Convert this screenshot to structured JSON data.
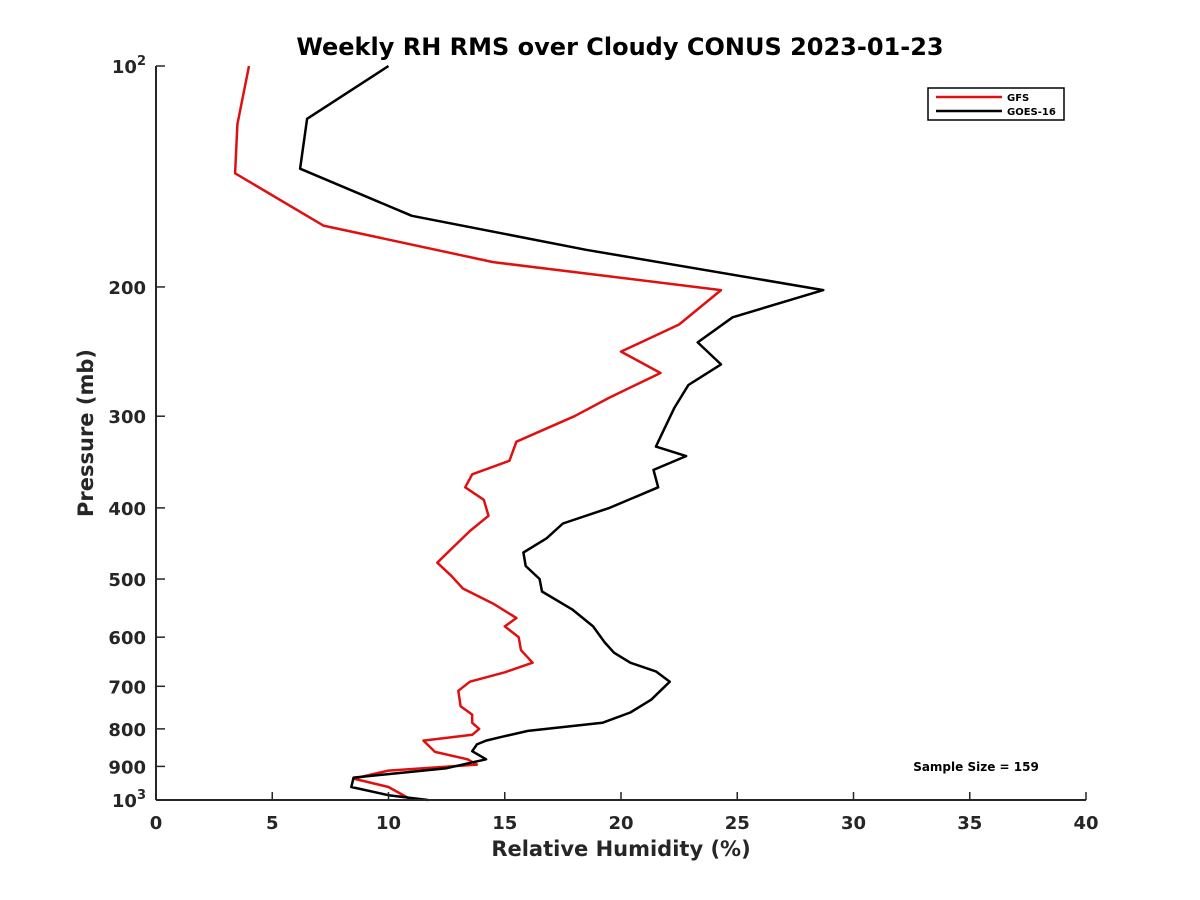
{
  "chart_data": {
    "type": "line",
    "title": "Weekly RH RMS over Cloudy CONUS 2023-01-23",
    "xlabel": "Relative Humidity (%)",
    "ylabel": "Pressure (mb)",
    "xlim": [
      0,
      40
    ],
    "ylim": [
      100,
      1000
    ],
    "y_scale": "log",
    "y_reversed": true,
    "x_ticks": [
      "0",
      "5",
      "10",
      "15",
      "20",
      "25",
      "30",
      "35",
      "40"
    ],
    "y_ticks": [
      {
        "value": 100,
        "base": "10",
        "exp": "2"
      },
      {
        "value": 200,
        "label": "200"
      },
      {
        "value": 300,
        "label": "300"
      },
      {
        "value": 400,
        "label": "400"
      },
      {
        "value": 500,
        "label": "500"
      },
      {
        "value": 600,
        "label": "600"
      },
      {
        "value": 700,
        "label": "700"
      },
      {
        "value": 800,
        "label": "800"
      },
      {
        "value": 900,
        "label": "900"
      },
      {
        "value": 1000,
        "base": "10",
        "exp": "3"
      }
    ],
    "legend_position": "top-right",
    "annotation": "Sample Size = 159",
    "series": [
      {
        "name": "GFS",
        "color": "#e01010",
        "points": [
          [
            4.0,
            100
          ],
          [
            3.5,
            120
          ],
          [
            3.4,
            140
          ],
          [
            7.2,
            165
          ],
          [
            14.5,
            185
          ],
          [
            24.3,
            202
          ],
          [
            22.5,
            225
          ],
          [
            20.0,
            245
          ],
          [
            21.7,
            262
          ],
          [
            19.5,
            283
          ],
          [
            18.0,
            300
          ],
          [
            15.5,
            325
          ],
          [
            15.2,
            345
          ],
          [
            13.6,
            360
          ],
          [
            13.3,
            375
          ],
          [
            14.1,
            390
          ],
          [
            14.3,
            410
          ],
          [
            13.5,
            430
          ],
          [
            12.7,
            455
          ],
          [
            12.1,
            475
          ],
          [
            12.7,
            495
          ],
          [
            13.2,
            515
          ],
          [
            14.5,
            540
          ],
          [
            15.5,
            565
          ],
          [
            15.0,
            580
          ],
          [
            15.6,
            600
          ],
          [
            15.7,
            625
          ],
          [
            16.2,
            650
          ],
          [
            15.0,
            670
          ],
          [
            13.5,
            690
          ],
          [
            13.0,
            710
          ],
          [
            13.1,
            745
          ],
          [
            13.6,
            765
          ],
          [
            13.6,
            785
          ],
          [
            13.9,
            800
          ],
          [
            13.6,
            815
          ],
          [
            11.5,
            830
          ],
          [
            12.0,
            860
          ],
          [
            13.4,
            880
          ],
          [
            13.8,
            895
          ],
          [
            10.0,
            912
          ],
          [
            8.5,
            935
          ],
          [
            10.0,
            960
          ],
          [
            11.0,
            1000
          ]
        ]
      },
      {
        "name": "GOES-16",
        "color": "#000000",
        "points": [
          [
            10.0,
            100
          ],
          [
            6.5,
            118
          ],
          [
            6.2,
            138
          ],
          [
            11.0,
            160
          ],
          [
            18.5,
            178
          ],
          [
            28.7,
            202
          ],
          [
            24.8,
            220
          ],
          [
            23.3,
            238
          ],
          [
            24.3,
            255
          ],
          [
            22.9,
            272
          ],
          [
            22.3,
            292
          ],
          [
            21.8,
            315
          ],
          [
            21.5,
            330
          ],
          [
            22.8,
            340
          ],
          [
            21.4,
            355
          ],
          [
            21.6,
            375
          ],
          [
            19.5,
            400
          ],
          [
            17.5,
            420
          ],
          [
            16.8,
            440
          ],
          [
            15.8,
            460
          ],
          [
            15.9,
            480
          ],
          [
            16.5,
            500
          ],
          [
            16.6,
            520
          ],
          [
            17.9,
            550
          ],
          [
            18.8,
            580
          ],
          [
            19.3,
            610
          ],
          [
            19.7,
            630
          ],
          [
            20.4,
            650
          ],
          [
            21.5,
            668
          ],
          [
            22.1,
            690
          ],
          [
            21.3,
            730
          ],
          [
            20.4,
            760
          ],
          [
            19.2,
            785
          ],
          [
            16.0,
            805
          ],
          [
            14.9,
            820
          ],
          [
            14.2,
            830
          ],
          [
            13.8,
            840
          ],
          [
            13.6,
            858
          ],
          [
            14.2,
            880
          ],
          [
            12.5,
            905
          ],
          [
            8.5,
            932
          ],
          [
            8.4,
            960
          ],
          [
            10.0,
            985
          ],
          [
            11.7,
            1000
          ]
        ]
      }
    ]
  }
}
